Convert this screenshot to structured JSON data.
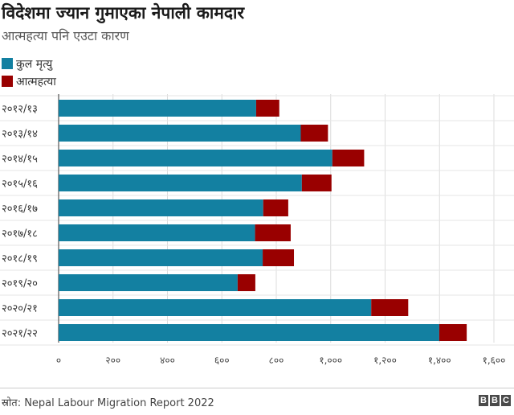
{
  "header": {
    "title": "विदेशमा ज्यान गुमाएका नेपाली कामदार",
    "subtitle": "आत्महत्या पनि एउटा कारण"
  },
  "legend": [
    {
      "label": "कुल मृत्यु",
      "color": "#1380a1"
    },
    {
      "label": "आत्महत्या",
      "color": "#990000"
    }
  ],
  "footer": {
    "source": "स्रोत: Nepal Labour Migration Report 2022",
    "logo_letters": [
      "B",
      "B",
      "C"
    ]
  },
  "chart_data": {
    "type": "bar",
    "orientation": "horizontal",
    "stacked": true,
    "categories": [
      "२०१२/१३",
      "२०१३/१४",
      "२०१४/१५",
      "२०१५/१६",
      "२०१६/१७",
      "२०१७/१८",
      "२०१८/१९",
      "२०१९/२०",
      "२०२०/२१",
      "२०२१/२२"
    ],
    "series": [
      {
        "name": "कुल मृत्यु",
        "color": "#1380a1",
        "values": [
          726,
          890,
          1006,
          894,
          752,
          722,
          750,
          658,
          1149,
          1399
        ]
      },
      {
        "name": "आत्महत्या",
        "color": "#990000",
        "values": [
          85,
          100,
          117,
          109,
          92,
          131,
          115,
          65,
          136,
          101
        ]
      }
    ],
    "xlim": [
      0,
      1600
    ],
    "xticks": [
      0,
      200,
      400,
      600,
      800,
      1000,
      1200,
      1400,
      1600
    ],
    "xtick_labels": [
      "०",
      "२००",
      "४००",
      "६००",
      "८००",
      "१,०००",
      "१,२००",
      "१,४००",
      "१,६००"
    ],
    "xlabel": "",
    "ylabel": "",
    "grid": "vertical",
    "legend_position": "top-left"
  }
}
